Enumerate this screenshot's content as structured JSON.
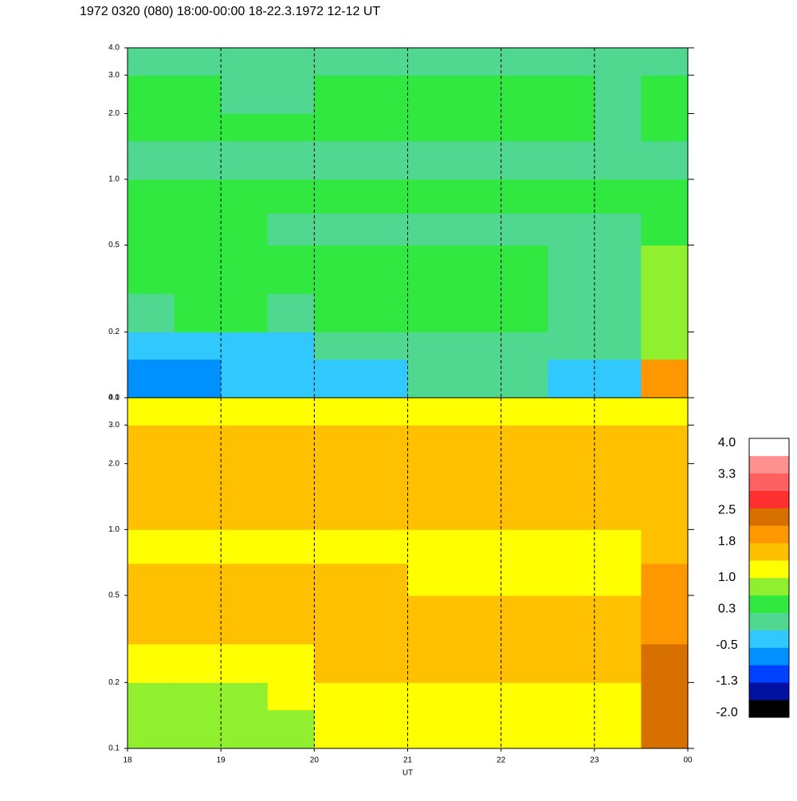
{
  "chart_data": [
    {
      "type": "heatmap",
      "title": "1972 0320 (080) 18:00-00:00 18-22.3.1972  12-12 UT",
      "log_y": true,
      "xlim": [
        18,
        24
      ],
      "ylim": [
        0.1,
        4
      ],
      "yticks": [
        0.1,
        0.2,
        0.5,
        {
          "value": 1,
          "label": "1.0"
        },
        {
          "value": 2,
          "label": "2.0"
        },
        {
          "value": 3,
          "label": "3.0"
        },
        {
          "value": 4,
          "label": "4.0"
        }
      ],
      "xgrid": [
        19,
        20,
        21,
        22,
        23
      ],
      "xbins": [
        18,
        18.5,
        19,
        19.5,
        20,
        20.5,
        21,
        21.5,
        22,
        22.5,
        23,
        23.5,
        24
      ],
      "ybins": [
        0.1,
        0.15,
        0.2,
        0.3,
        0.5,
        0.7,
        1,
        1.5,
        2,
        3,
        4
      ],
      "z": [
        [
          -0.7,
          -0.6,
          -0.5,
          -0.4,
          -0.2,
          -0.2,
          -0.1,
          0,
          -0.1,
          -0.2,
          -0.4,
          1.8
        ],
        [
          -0.3,
          -0.3,
          -0.2,
          -0.2,
          0,
          0,
          0.1,
          0.2,
          0.1,
          0,
          -0.1,
          0.9
        ],
        [
          0.2,
          0.3,
          0.3,
          0.2,
          0.3,
          0.3,
          0.3,
          0.3,
          0.3,
          0.2,
          0.1,
          0.8
        ],
        [
          0.4,
          0.5,
          0.5,
          0.4,
          0.3,
          0.3,
          0.3,
          0.3,
          0.3,
          0.2,
          0.2,
          0.7
        ],
        [
          0.4,
          0.4,
          0.3,
          0.2,
          0.1,
          0.1,
          0.1,
          0.1,
          0.1,
          0.1,
          0.1,
          0.5
        ],
        [
          0.4,
          0.4,
          0.3,
          0.3,
          0.3,
          0.3,
          0.3,
          0.3,
          0.3,
          0.3,
          0.3,
          0.4
        ],
        [
          0.1,
          0.1,
          0,
          0,
          0.1,
          0.1,
          0.1,
          0.1,
          0.1,
          0.1,
          0,
          0.2
        ],
        [
          0.4,
          0.4,
          0.4,
          0.3,
          0.4,
          0.4,
          0.4,
          0.4,
          0.4,
          0.3,
          0.2,
          0.3
        ],
        [
          0.3,
          0.3,
          0.2,
          0.2,
          0.3,
          0.3,
          0.3,
          0.3,
          0.3,
          0.3,
          0.2,
          0.3
        ],
        [
          0.1,
          0.1,
          0,
          0,
          0,
          0.1,
          0.1,
          0.1,
          0.1,
          0,
          -0.1,
          0.1
        ]
      ]
    },
    {
      "type": "heatmap",
      "log_y": true,
      "xlim": [
        18,
        24
      ],
      "ylim": [
        0.1,
        4
      ],
      "xlabel": "UT",
      "xticks": [
        18,
        19,
        20,
        21,
        22,
        23,
        {
          "value": 24,
          "label": "00"
        }
      ],
      "yticks": [
        0.1,
        0.2,
        0.5,
        {
          "value": 1,
          "label": "1.0"
        },
        {
          "value": 2,
          "label": "2.0"
        },
        {
          "value": 3,
          "label": "3.0"
        },
        {
          "value": 4,
          "label": "4.0"
        }
      ],
      "xgrid": [
        19,
        20,
        21,
        22,
        23
      ],
      "xbins": [
        18,
        18.5,
        19,
        19.5,
        20,
        20.5,
        21,
        21.5,
        22,
        22.5,
        23,
        23.5,
        24
      ],
      "ybins": [
        0.1,
        0.15,
        0.2,
        0.3,
        0.5,
        0.7,
        1,
        1.5,
        2,
        3,
        4
      ],
      "z": [
        [
          0.8,
          0.8,
          0.8,
          0.9,
          1.1,
          1.1,
          1.0,
          1.1,
          1.0,
          1.0,
          1.0,
          2.4
        ],
        [
          0.9,
          0.9,
          0.9,
          1.0,
          1.2,
          1.2,
          1.1,
          1.2,
          1.1,
          1.1,
          1.1,
          2.5
        ],
        [
          1.0,
          1.0,
          1.1,
          1.1,
          1.5,
          1.5,
          1.4,
          1.5,
          1.4,
          1.4,
          1.4,
          2.3
        ],
        [
          1.5,
          1.5,
          1.5,
          1.5,
          1.6,
          1.6,
          1.5,
          1.6,
          1.5,
          1.5,
          1.5,
          2.1
        ],
        [
          1.6,
          1.6,
          1.6,
          1.7,
          1.4,
          1.4,
          1.3,
          1.3,
          1.3,
          1.3,
          1.3,
          1.9
        ],
        [
          1.2,
          1.2,
          1.2,
          1.2,
          1.2,
          1.2,
          1.2,
          1.2,
          1.2,
          1.2,
          1.2,
          1.6
        ],
        [
          1.5,
          1.5,
          1.5,
          1.5,
          1.5,
          1.5,
          1.5,
          1.5,
          1.5,
          1.5,
          1.5,
          1.6
        ],
        [
          1.6,
          1.6,
          1.6,
          1.6,
          1.6,
          1.6,
          1.6,
          1.6,
          1.6,
          1.6,
          1.6,
          1.6
        ],
        [
          1.6,
          1.6,
          1.6,
          1.6,
          1.6,
          1.6,
          1.6,
          1.6,
          1.6,
          1.6,
          1.6,
          1.6
        ],
        [
          1.1,
          1.1,
          1.1,
          1.1,
          1.1,
          1.1,
          1.1,
          1.1,
          1.1,
          1.1,
          1.1,
          1.1
        ]
      ],
      "colorbar": {
        "zlim": [
          -2.1,
          4.1
        ],
        "colors": [
          "#000000",
          "#0010a0",
          "#0040ff",
          "#0090ff",
          "#30c8ff",
          "#50d890",
          "#30e840",
          "#90f030",
          "#ffff00",
          "#ffc000",
          "#ff9800",
          "#d87000",
          "#ff3030",
          "#ff6060",
          "#ff9090",
          "#ffffff"
        ],
        "ticks": [
          {
            "value": -2,
            "label": "-2.0"
          },
          -1.3,
          -0.5,
          0.3,
          {
            "value": 1,
            "label": "1.0"
          },
          1.8,
          2.5,
          3.3,
          {
            "value": 4,
            "label": "4.0"
          }
        ]
      }
    }
  ]
}
